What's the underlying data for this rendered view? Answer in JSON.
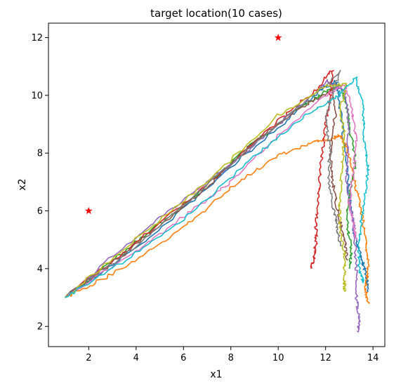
{
  "chart_data": {
    "type": "line",
    "title": "target location(10 cases)",
    "xlabel": "x1",
    "ylabel": "x2",
    "xlim": [
      0.3,
      14.5
    ],
    "ylim": [
      1.3,
      12.5
    ],
    "xticks": [
      2,
      4,
      6,
      8,
      10,
      12,
      14
    ],
    "yticks": [
      2,
      4,
      6,
      8,
      10,
      12
    ],
    "grid": false,
    "start": [
      1.0,
      3.0
    ],
    "targets": [
      {
        "x": 2,
        "y": 6,
        "marker": "star",
        "color": "#ff0000"
      },
      {
        "x": 10,
        "y": 12,
        "marker": "star",
        "color": "#ff0000"
      }
    ],
    "series": [
      {
        "color": "#1f77b4",
        "points": [
          [
            1.0,
            3.0
          ],
          [
            4,
            4.7
          ],
          [
            7,
            6.8
          ],
          [
            10,
            8.9
          ],
          [
            11.8,
            10.2
          ],
          [
            12.5,
            10.5
          ],
          [
            12.6,
            9.6
          ],
          [
            12.8,
            8.2
          ],
          [
            13.0,
            6.6
          ],
          [
            13.2,
            5.2
          ],
          [
            13.5,
            4.4
          ],
          [
            13.7,
            3.8
          ],
          [
            13.8,
            3.2
          ]
        ]
      },
      {
        "color": "#ff7f0e",
        "points": [
          [
            1.0,
            3.0
          ],
          [
            3,
            3.8
          ],
          [
            6,
            5.4
          ],
          [
            8,
            6.8
          ],
          [
            10,
            7.9
          ],
          [
            11.5,
            8.4
          ],
          [
            12.3,
            8.5
          ],
          [
            12.6,
            8.6
          ],
          [
            12.9,
            8.2
          ],
          [
            13.2,
            7.1
          ],
          [
            13.5,
            6.0
          ],
          [
            13.7,
            5.0
          ],
          [
            13.8,
            4.0
          ],
          [
            13.7,
            3.3
          ],
          [
            13.8,
            2.8
          ]
        ]
      },
      {
        "color": "#2ca02c",
        "points": [
          [
            1.0,
            3.0
          ],
          [
            4,
            4.9
          ],
          [
            6,
            6.2
          ],
          [
            9,
            8.4
          ],
          [
            11.5,
            9.9
          ],
          [
            12.6,
            10.4
          ],
          [
            12.9,
            9.6
          ],
          [
            13.0,
            8.8
          ],
          [
            13.3,
            7.7
          ],
          [
            13.0,
            6.6
          ],
          [
            12.9,
            5.5
          ],
          [
            13.1,
            4.6
          ],
          [
            13.0,
            4.0
          ]
        ]
      },
      {
        "color": "#d62728",
        "points": [
          [
            1.0,
            3.0
          ],
          [
            4,
            4.9
          ],
          [
            7,
            6.9
          ],
          [
            10,
            9.1
          ],
          [
            11.6,
            10.2
          ],
          [
            12.3,
            10.9
          ],
          [
            12.2,
            10.0
          ],
          [
            12.0,
            9.0
          ],
          [
            11.8,
            7.7
          ],
          [
            11.7,
            6.5
          ],
          [
            11.6,
            5.6
          ],
          [
            11.6,
            4.9
          ],
          [
            11.5,
            4.4
          ],
          [
            11.4,
            4.0
          ]
        ]
      },
      {
        "color": "#9467bd",
        "points": [
          [
            1.0,
            3.0
          ],
          [
            4,
            5.1
          ],
          [
            6,
            6.4
          ],
          [
            8,
            7.6
          ],
          [
            10,
            9.0
          ],
          [
            12.1,
            10.5
          ],
          [
            12.8,
            10.1
          ],
          [
            13.0,
            9.0
          ],
          [
            12.9,
            8.0
          ],
          [
            12.9,
            7.0
          ],
          [
            13.2,
            5.5
          ],
          [
            13.3,
            4.0
          ],
          [
            13.3,
            3.0
          ],
          [
            13.4,
            2.3
          ],
          [
            13.4,
            1.8
          ]
        ]
      },
      {
        "color": "#8c564b",
        "points": [
          [
            1.0,
            3.0
          ],
          [
            3,
            4.2
          ],
          [
            5,
            5.5
          ],
          [
            7,
            6.8
          ],
          [
            9,
            8.4
          ],
          [
            11,
            9.6
          ],
          [
            12.3,
            10.2
          ],
          [
            12.4,
            9.3
          ],
          [
            12.2,
            8.1
          ],
          [
            12.3,
            7.0
          ],
          [
            12.5,
            6.0
          ],
          [
            12.8,
            5.0
          ],
          [
            12.9,
            4.3
          ]
        ]
      },
      {
        "color": "#e377c2",
        "points": [
          [
            1.0,
            3.0
          ],
          [
            4,
            4.6
          ],
          [
            6,
            5.8
          ],
          [
            8,
            7.0
          ],
          [
            10,
            8.6
          ],
          [
            12,
            10.0
          ],
          [
            12.8,
            10.4
          ],
          [
            13.1,
            9.5
          ],
          [
            13.3,
            8.5
          ],
          [
            13.2,
            7.4
          ],
          [
            13.0,
            6.3
          ],
          [
            13.2,
            5.5
          ],
          [
            13.3,
            5.0
          ]
        ]
      },
      {
        "color": "#7f7f7f",
        "points": [
          [
            1.0,
            3.0
          ],
          [
            4,
            4.8
          ],
          [
            7,
            6.9
          ],
          [
            9,
            8.3
          ],
          [
            11,
            9.7
          ],
          [
            12.6,
            10.8
          ],
          [
            12.3,
            10.1
          ],
          [
            12.0,
            9.1
          ],
          [
            12.2,
            8.2
          ],
          [
            12.1,
            7.2
          ],
          [
            12.3,
            6.2
          ],
          [
            12.5,
            5.4
          ],
          [
            12.6,
            4.8
          ]
        ]
      },
      {
        "color": "#bcbd22",
        "points": [
          [
            1.0,
            3.0
          ],
          [
            4,
            5.0
          ],
          [
            7,
            7.0
          ],
          [
            10,
            9.3
          ],
          [
            12,
            10.3
          ],
          [
            12.9,
            10.4
          ],
          [
            12.6,
            9.5
          ],
          [
            12.8,
            8.6
          ],
          [
            12.7,
            7.5
          ],
          [
            12.6,
            6.5
          ],
          [
            12.6,
            5.4
          ],
          [
            12.8,
            4.5
          ],
          [
            12.8,
            3.6
          ],
          [
            12.8,
            3.2
          ]
        ]
      },
      {
        "color": "#17becf",
        "points": [
          [
            1.0,
            3.0
          ],
          [
            3,
            4.0
          ],
          [
            6,
            5.7
          ],
          [
            9,
            7.9
          ],
          [
            11,
            9.2
          ],
          [
            12.4,
            9.9
          ],
          [
            13.3,
            10.6
          ],
          [
            13.6,
            9.6
          ],
          [
            13.6,
            8.5
          ],
          [
            13.8,
            7.4
          ],
          [
            13.6,
            6.2
          ],
          [
            13.4,
            5.0
          ],
          [
            13.4,
            4.0
          ],
          [
            13.6,
            3.5
          ]
        ]
      }
    ]
  }
}
